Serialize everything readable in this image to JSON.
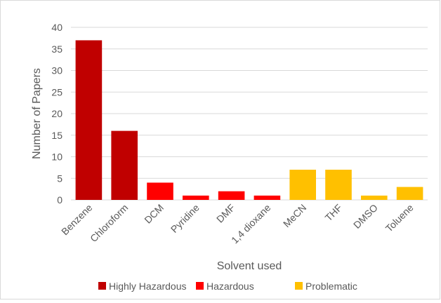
{
  "chart_data": {
    "type": "bar",
    "title": "",
    "xlabel": "Solvent used",
    "ylabel": "Number of Papers",
    "ylim": [
      0,
      40
    ],
    "yticks": [
      0,
      5,
      10,
      15,
      20,
      25,
      30,
      35,
      40
    ],
    "grid": true,
    "legend_position": "bottom",
    "categories": [
      "Benzene",
      "Chloroform",
      "DCM",
      "Pyridine",
      "DMF",
      "1,4 dioxane",
      "MeCN",
      "THF",
      "DMSO",
      "Toluene"
    ],
    "values": [
      37,
      16,
      4,
      1,
      2,
      1,
      7,
      7,
      1,
      3
    ],
    "bar_group": [
      "Highly Hazardous",
      "Highly Hazardous",
      "Hazardous",
      "Hazardous",
      "Hazardous",
      "Hazardous",
      "Problematic",
      "Problematic",
      "Problematic",
      "Problematic"
    ],
    "legend": [
      {
        "name": "Highly Hazardous",
        "color": "#c00000"
      },
      {
        "name": "Hazardous",
        "color": "#ff0000"
      },
      {
        "name": "Problematic",
        "color": "#ffc000"
      }
    ],
    "gridline_color": "#d9d9d9",
    "text_color": "#595959"
  }
}
